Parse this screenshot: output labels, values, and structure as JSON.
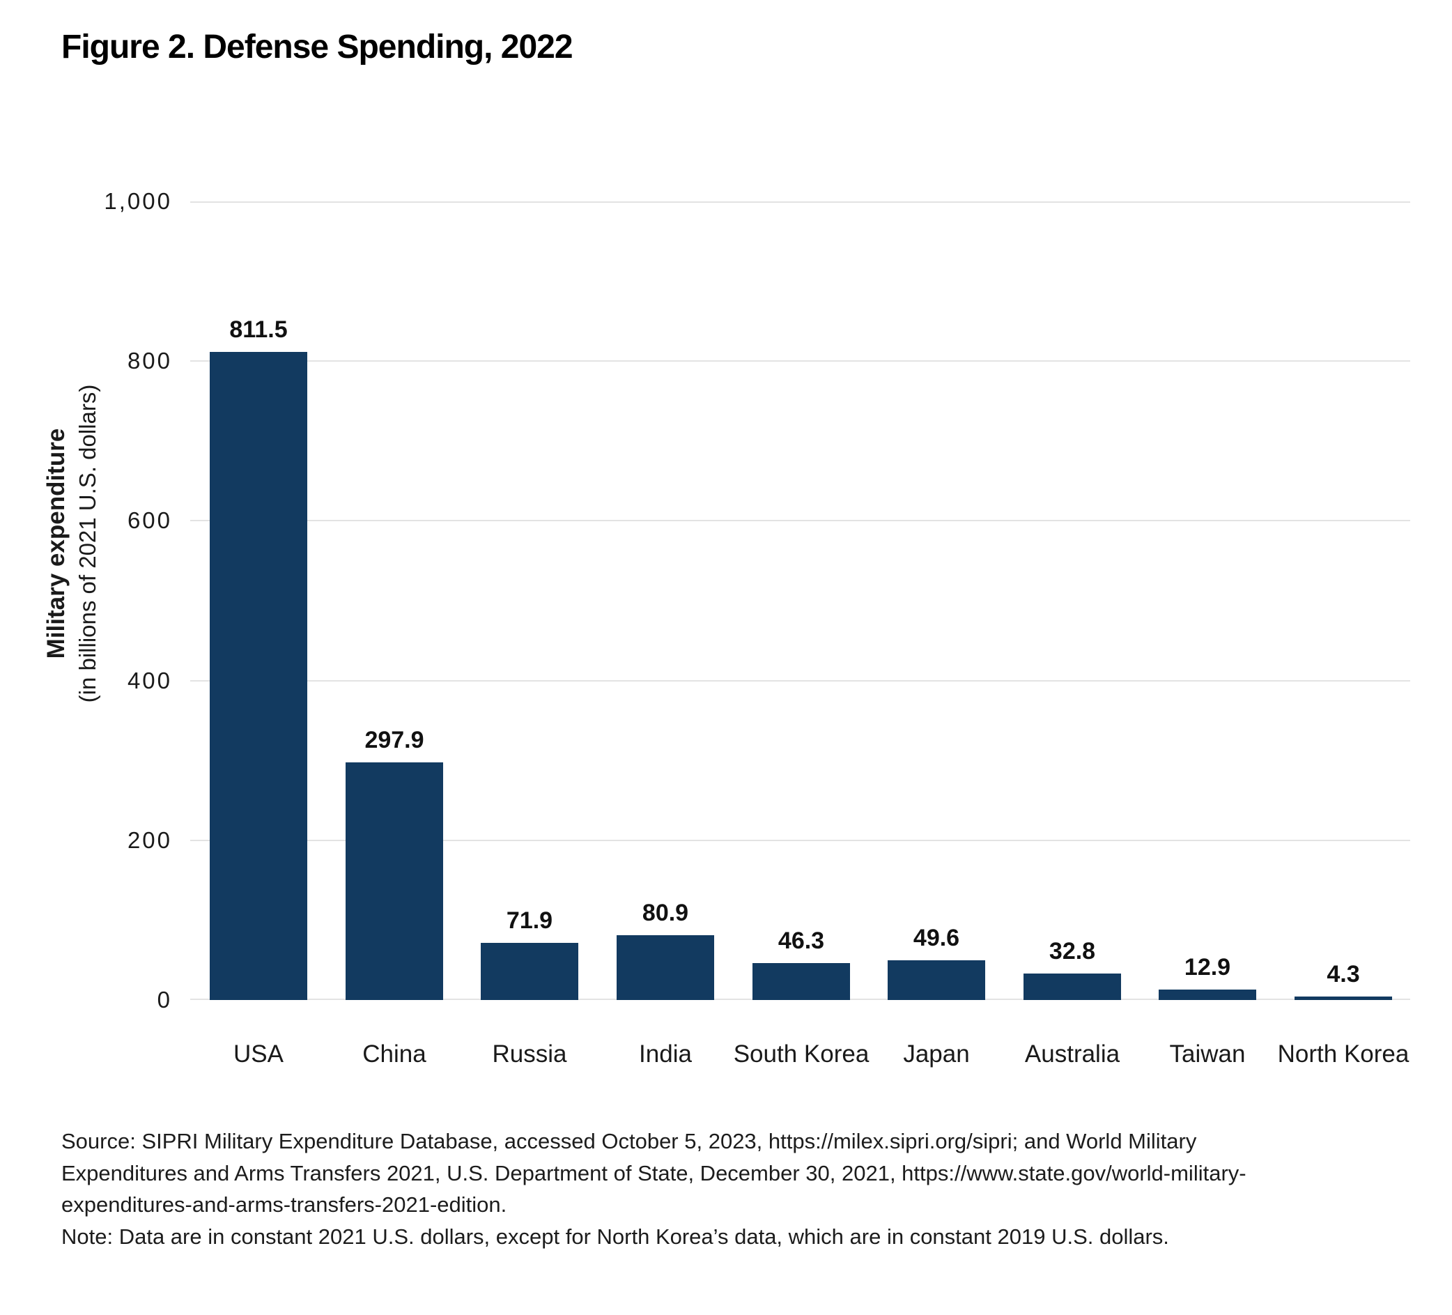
{
  "page": {
    "title": "Figure 2. Defense Spending, 2022",
    "source_lines": [
      "Source: SIPRI Military Expenditure Database, accessed October 5, 2023, https://milex.sipri.org/sipri; and World Military",
      "Expenditures and Arms Transfers 2021, U.S. Department of State, December 30, 2021, https://www.state.gov/world-military-",
      "expenditures-and-arms-transfers-2021-edition."
    ],
    "note": "Note: Data are in constant 2021 U.S. dollars, except for North Korea’s data, which are in constant 2019 U.S. dollars."
  },
  "chart_data": {
    "type": "bar",
    "title": "Figure 2. Defense Spending, 2022",
    "categories": [
      "USA",
      "China",
      "Russia",
      "India",
      "South Korea",
      "Japan",
      "Australia",
      "Taiwan",
      "North Korea"
    ],
    "values": [
      811.5,
      297.9,
      71.9,
      80.9,
      46.3,
      49.6,
      32.8,
      12.9,
      4.3
    ],
    "value_labels": [
      "811.5",
      "297.9",
      "71.9",
      "80.9",
      "46.3",
      "49.6",
      "32.8",
      "12.9",
      "4.3"
    ],
    "ylabel": "Military expenditure",
    "ylabel_sub": "(in billions of 2021 U.S. dollars)",
    "xlabel": "",
    "ylim": [
      0,
      1000
    ],
    "yticks": [
      0,
      200,
      400,
      600,
      800,
      1000
    ],
    "ytick_labels": [
      "0",
      "200",
      "400",
      "600",
      "800",
      "1,000"
    ],
    "grid": true,
    "legend": "none",
    "bar_color": "#123A60",
    "gridline_color": "#E3E3E3",
    "text_color": "#1A1A1A"
  }
}
